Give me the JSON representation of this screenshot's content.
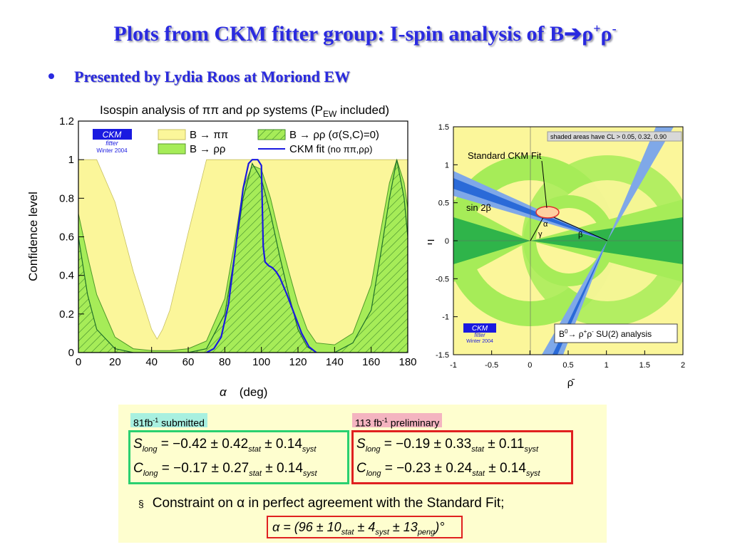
{
  "slide": {
    "title": "Plots from CKM fitter group: I-spin analysis of B",
    "title_arrow": "➔",
    "title_rho1": "ρ",
    "title_plus": "+",
    "title_rho2": "ρ",
    "title_minus": "-",
    "bullet": "Presented by Lydia Roos at Moriond EW"
  },
  "left_plot": {
    "title_prefix": "Isospin analysis of ππ and ρρ systems (P",
    "title_sub": "EW",
    "title_suffix": " included)",
    "ylabel": "Confidence level",
    "xlabel_alpha": "α",
    "xlabel_unit": "(deg)",
    "ckm_logo": "CKM",
    "ckm_logo2": "fitter",
    "ckm_logo3": "Winter 2004",
    "legend": {
      "pipi": "B → ππ",
      "rhorho": "B → ρρ",
      "rhorho_hatched": "B → ρρ (σ(S,C)=0)",
      "ckm_fit": "CKM fit",
      "ckm_fit_note": "(no ππ,ρρ)"
    },
    "colors": {
      "yellow": "#fbf69a",
      "green": "#a6ec58",
      "darkgreen": "#1f6f2a",
      "blue": "#1a1ae0"
    }
  },
  "right_plot": {
    "note": "shaded areas have CL > 0.05, 0.32, 0.90",
    "standard_fit": "Standard CKM Fit",
    "sin2beta": "sin 2β",
    "alpha": "α",
    "beta": "β",
    "gamma": "γ",
    "xlabel": "ρ̄",
    "ylabel": "η̄",
    "analysis_prefix": "B",
    "analysis_sup0": "0",
    "analysis_mid": "→ ρ",
    "analysis_supplus": "+",
    "analysis_rho": "ρ",
    "analysis_supminus": "-",
    "analysis_suffix": " SU(2) analysis",
    "ckm_logo": "CKM",
    "ckm_logo2": "fitter",
    "ckm_logo3": "Winter 2004"
  },
  "results": {
    "submitted_prefix": "81fb",
    "submitted_sup": "-1",
    "submitted_suffix": " submitted",
    "prelim_prefix": "113 fb",
    "prelim_sup": "-1",
    "prelim_suffix": " preliminary",
    "left": {
      "s_value": "S",
      "s_sub": "long",
      "s_rest": " = −0.42 ± 0.42",
      "s_stat": "stat",
      "s_syst_val": " ± 0.14",
      "s_syst": "syst",
      "c_value": "C",
      "c_sub": "long",
      "c_rest": " = −0.17 ± 0.27",
      "c_stat": "stat",
      "c_syst_val": " ± 0.14",
      "c_syst": "syst"
    },
    "right": {
      "s_value": "S",
      "s_sub": "long",
      "s_rest": " = −0.19 ± 0.33",
      "s_stat": "stat",
      "s_syst_val": " ± 0.11",
      "s_syst": "syst",
      "c_value": "C",
      "c_sub": "long",
      "c_rest": " = −0.23 ± 0.24",
      "c_stat": "stat",
      "c_syst_val": " ± 0.14",
      "c_syst": "syst"
    },
    "note_bullet": "§",
    "note": "Constraint on α in perfect agreement with the Standard Fit;",
    "final_a": "α = (96 ± 10",
    "final_stat": "stat",
    "final_b": " ± 4",
    "final_syst": "syst",
    "final_c": " ± 13",
    "final_peng": "peng",
    "final_d": ")°"
  },
  "chart_data": [
    {
      "type": "area",
      "title": "Isospin analysis of ππ and ρρ systems (PEW included)",
      "xlabel": "α (deg)",
      "ylabel": "Confidence level",
      "xlim": [
        0,
        180
      ],
      "ylim": [
        0,
        1.2
      ],
      "xticks": [
        0,
        20,
        40,
        60,
        80,
        100,
        120,
        140,
        160,
        180
      ],
      "yticks": [
        0,
        0.2,
        0.4,
        0.6,
        0.8,
        1,
        1.2
      ],
      "series": [
        {
          "name": "B → ππ",
          "x": [
            0,
            10,
            20,
            30,
            40,
            43,
            46,
            50,
            60,
            70,
            80,
            90,
            100,
            110,
            120,
            130,
            140,
            150,
            160,
            170,
            180
          ],
          "values": [
            1,
            1,
            0.78,
            0.42,
            0.12,
            0.07,
            0.12,
            0.22,
            0.62,
            1,
            1,
            1,
            1,
            1,
            1,
            1,
            1,
            1,
            1,
            1,
            1
          ]
        },
        {
          "name": "B → ρρ",
          "x": [
            0,
            5,
            10,
            20,
            30,
            40,
            50,
            60,
            70,
            80,
            85,
            90,
            95,
            100,
            105,
            110,
            115,
            120,
            125,
            130,
            140,
            150,
            160,
            165,
            170,
            174,
            178,
            180
          ],
          "values": [
            0.72,
            0.5,
            0.3,
            0.08,
            0.02,
            0.01,
            0.01,
            0.02,
            0.06,
            0.28,
            0.55,
            0.85,
            0.97,
            0.95,
            0.8,
            0.6,
            0.42,
            0.25,
            0.12,
            0.05,
            0.04,
            0.1,
            0.35,
            0.62,
            0.88,
            1,
            0.88,
            0.75
          ]
        },
        {
          "name": "B → ρρ (σ(S,C)=0)",
          "x": [
            0,
            5,
            10,
            20,
            30,
            40,
            50,
            60,
            70,
            80,
            85,
            90,
            95,
            100,
            105,
            110,
            115,
            120,
            125,
            130,
            140,
            150,
            160,
            165,
            170,
            174,
            178,
            180
          ],
          "values": [
            0.6,
            0.3,
            0.12,
            0.02,
            0,
            0,
            0,
            0,
            0.02,
            0.2,
            0.48,
            0.8,
            0.98,
            0.9,
            0.72,
            0.5,
            0.3,
            0.12,
            0.03,
            0,
            0,
            0.05,
            0.22,
            0.5,
            0.8,
            1,
            0.8,
            0.6
          ]
        },
        {
          "name": "CKM fit (no ππ,ρρ)",
          "x": [
            70,
            74,
            78,
            82,
            86,
            90,
            93,
            95,
            98,
            100,
            101,
            102,
            104,
            106,
            108,
            110,
            114,
            118,
            122,
            126,
            130
          ],
          "values": [
            0,
            0.02,
            0.08,
            0.25,
            0.55,
            0.85,
            0.98,
            1,
            1,
            0.97,
            0.55,
            0.47,
            0.45,
            0.44,
            0.42,
            0.39,
            0.3,
            0.2,
            0.1,
            0.03,
            0
          ]
        }
      ]
    }
  ]
}
